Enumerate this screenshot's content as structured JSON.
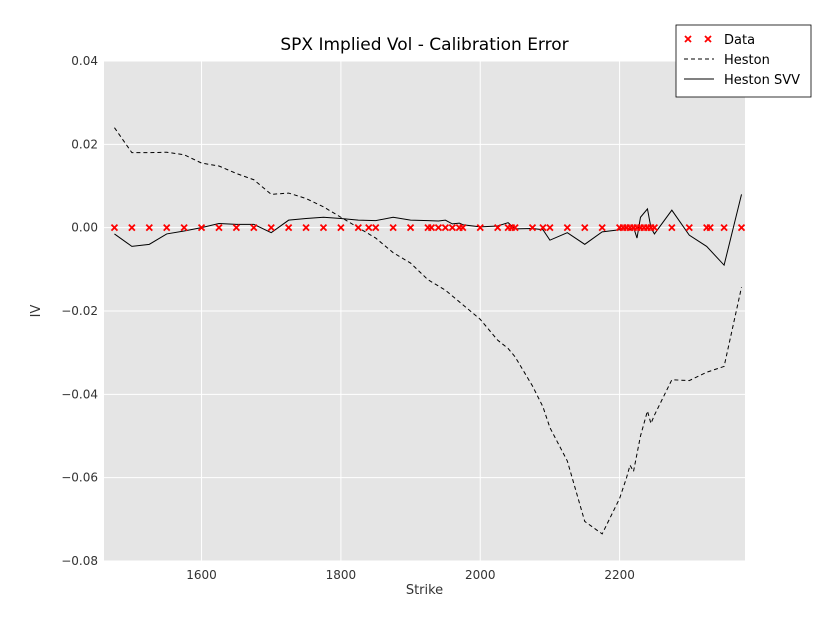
{
  "chart_data": {
    "type": "line",
    "title": "SPX Implied Vol - Calibration Error",
    "xlabel": "Strike",
    "ylabel": "IV",
    "xlim": [
      1460,
      2380
    ],
    "ylim": [
      -0.08,
      0.04
    ],
    "xticks": [
      1600,
      1800,
      2000,
      2200
    ],
    "xtick_labels": [
      "1600",
      "1800",
      "2000",
      "2200"
    ],
    "yticks": [
      0.04,
      0.02,
      0.0,
      -0.02,
      -0.04,
      -0.06,
      -0.08
    ],
    "ytick_labels": [
      "0.04",
      "0.02",
      "0.00",
      "−0.02",
      "−0.04",
      "−0.06",
      "−0.08"
    ],
    "grid": true,
    "background": "#e5e5e5",
    "legend_position": "top-right",
    "series": [
      {
        "name": "Data",
        "style": "markers",
        "marker": "x",
        "color": "#ff0000",
        "x": [
          1475,
          1500,
          1525,
          1550,
          1575,
          1600,
          1625,
          1650,
          1675,
          1700,
          1725,
          1750,
          1775,
          1800,
          1825,
          1840,
          1850,
          1875,
          1900,
          1925,
          1930,
          1940,
          1950,
          1960,
          1970,
          1975,
          2000,
          2025,
          2040,
          2045,
          2050,
          2075,
          2090,
          2100,
          2125,
          2150,
          2175,
          2200,
          2205,
          2210,
          2215,
          2220,
          2225,
          2230,
          2235,
          2240,
          2245,
          2250,
          2275,
          2300,
          2325,
          2330,
          2350,
          2375
        ],
        "y": [
          0,
          0,
          0,
          0,
          0,
          0,
          0,
          0,
          0,
          0,
          0,
          0,
          0,
          0,
          0,
          0,
          0,
          0,
          0,
          0,
          0,
          0,
          0,
          0,
          0,
          0,
          0,
          0,
          0,
          0,
          0,
          0,
          0,
          0,
          0,
          0,
          0,
          0,
          0,
          0,
          0,
          0,
          0,
          0,
          0,
          0,
          0,
          0,
          0,
          0,
          0,
          0,
          0,
          0
        ]
      },
      {
        "name": "Heston",
        "style": "dashed",
        "color": "#000000",
        "x": [
          1475,
          1500,
          1525,
          1550,
          1575,
          1600,
          1625,
          1650,
          1675,
          1700,
          1725,
          1750,
          1775,
          1800,
          1825,
          1850,
          1875,
          1900,
          1925,
          1950,
          1975,
          2000,
          2025,
          2040,
          2050,
          2075,
          2090,
          2100,
          2125,
          2150,
          2175,
          2200,
          2210,
          2215,
          2220,
          2230,
          2240,
          2245,
          2250,
          2275,
          2300,
          2325,
          2350,
          2375
        ],
        "y": [
          0.024,
          0.018,
          0.018,
          0.0181,
          0.0175,
          0.0155,
          0.0148,
          0.013,
          0.0115,
          0.008,
          0.0083,
          0.007,
          0.005,
          0.0025,
          0.0,
          -0.0025,
          -0.006,
          -0.0085,
          -0.0125,
          -0.015,
          -0.0185,
          -0.022,
          -0.027,
          -0.029,
          -0.031,
          -0.038,
          -0.043,
          -0.048,
          -0.056,
          -0.0705,
          -0.0735,
          -0.065,
          -0.06,
          -0.057,
          -0.0585,
          -0.05,
          -0.044,
          -0.047,
          -0.045,
          -0.0365,
          -0.0367,
          -0.0347,
          -0.0333,
          -0.0143
        ]
      },
      {
        "name": "Heston SVV",
        "style": "solid",
        "color": "#000000",
        "x": [
          1475,
          1500,
          1525,
          1550,
          1575,
          1600,
          1625,
          1650,
          1675,
          1700,
          1725,
          1750,
          1775,
          1800,
          1825,
          1850,
          1875,
          1900,
          1925,
          1940,
          1950,
          1960,
          1970,
          1975,
          2000,
          2025,
          2040,
          2050,
          2075,
          2090,
          2100,
          2125,
          2150,
          2175,
          2200,
          2210,
          2215,
          2220,
          2225,
          2230,
          2240,
          2245,
          2250,
          2275,
          2300,
          2325,
          2350,
          2375
        ],
        "y": [
          -0.0015,
          -0.0045,
          -0.004,
          -0.0015,
          -0.0008,
          0.0,
          0.001,
          0.0008,
          0.0008,
          -0.0012,
          0.0018,
          0.0022,
          0.0025,
          0.0022,
          0.0018,
          0.0017,
          0.0025,
          0.0018,
          0.0017,
          0.0016,
          0.0018,
          0.0009,
          0.0011,
          0.0007,
          0.0002,
          0.0004,
          0.0012,
          -0.0003,
          -0.0002,
          -0.0005,
          -0.003,
          -0.0012,
          -0.004,
          -0.001,
          -0.0005,
          0.0,
          -0.0005,
          0.0001,
          -0.0025,
          0.0025,
          0.0045,
          0.0,
          -0.0015,
          0.0042,
          -0.0018,
          -0.0045,
          -0.009,
          0.008
        ]
      }
    ]
  }
}
